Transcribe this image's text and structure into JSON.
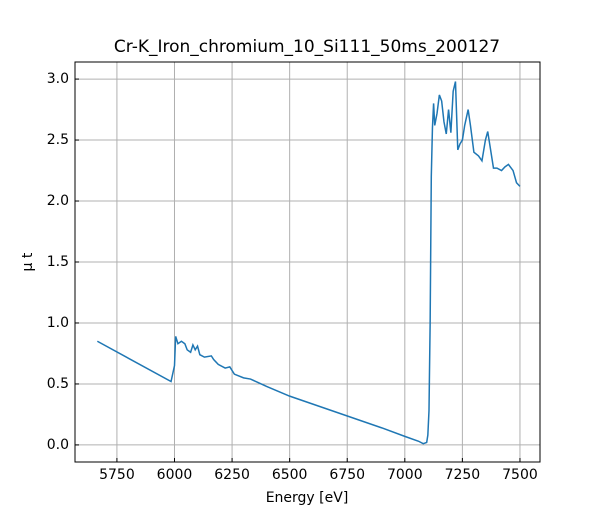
{
  "chart_data": {
    "type": "line",
    "title": "Cr-K_Iron_chromium_10_Si111_50ms_200127",
    "x_label": "Energy [eV]",
    "y_label": "μ t",
    "xlim": [
      5568,
      7587
    ],
    "ylim": [
      -0.14,
      3.14
    ],
    "xticks": [
      5750,
      6000,
      6250,
      6500,
      6750,
      7000,
      7250,
      7500
    ],
    "yticks": [
      {
        "value": 0,
        "label": "0.0"
      },
      {
        "value": 0.5,
        "label": "0.5"
      },
      {
        "value": 1,
        "label": "1.0"
      },
      {
        "value": 1.5,
        "label": "1.5"
      },
      {
        "value": 2,
        "label": "2.0"
      },
      {
        "value": 2.5,
        "label": "2.5"
      },
      {
        "value": 3,
        "label": "3.0"
      }
    ],
    "grid": true,
    "x": [
      5665,
      5985,
      6000,
      6005,
      6015,
      6030,
      6045,
      6055,
      6070,
      6080,
      6090,
      6100,
      6110,
      6130,
      6160,
      6170,
      6190,
      6220,
      6240,
      6260,
      6300,
      6330,
      6400,
      6500,
      6700,
      6900,
      7000,
      7060,
      7080,
      7095,
      7100,
      7105,
      7110,
      7115,
      7120,
      7125,
      7130,
      7140,
      7150,
      7160,
      7170,
      7180,
      7190,
      7200,
      7210,
      7220,
      7230,
      7240,
      7250,
      7260,
      7275,
      7285,
      7300,
      7320,
      7335,
      7350,
      7360,
      7370,
      7385,
      7400,
      7420,
      7435,
      7450,
      7470,
      7485,
      7500
    ],
    "series": [
      {
        "name": "mu",
        "color": "#1f77b4",
        "values": [
          0.85,
          0.52,
          0.65,
          0.89,
          0.83,
          0.85,
          0.83,
          0.78,
          0.76,
          0.82,
          0.78,
          0.81,
          0.74,
          0.72,
          0.73,
          0.7,
          0.66,
          0.63,
          0.64,
          0.58,
          0.55,
          0.54,
          0.48,
          0.4,
          0.27,
          0.14,
          0.07,
          0.03,
          0.01,
          0.02,
          0.08,
          0.28,
          1.0,
          2.2,
          2.6,
          2.8,
          2.62,
          2.72,
          2.87,
          2.82,
          2.65,
          2.55,
          2.75,
          2.56,
          2.9,
          2.98,
          2.42,
          2.47,
          2.5,
          2.62,
          2.75,
          2.62,
          2.4,
          2.37,
          2.33,
          2.5,
          2.57,
          2.45,
          2.27,
          2.27,
          2.25,
          2.28,
          2.3,
          2.25,
          2.15,
          2.12
        ]
      }
    ]
  }
}
